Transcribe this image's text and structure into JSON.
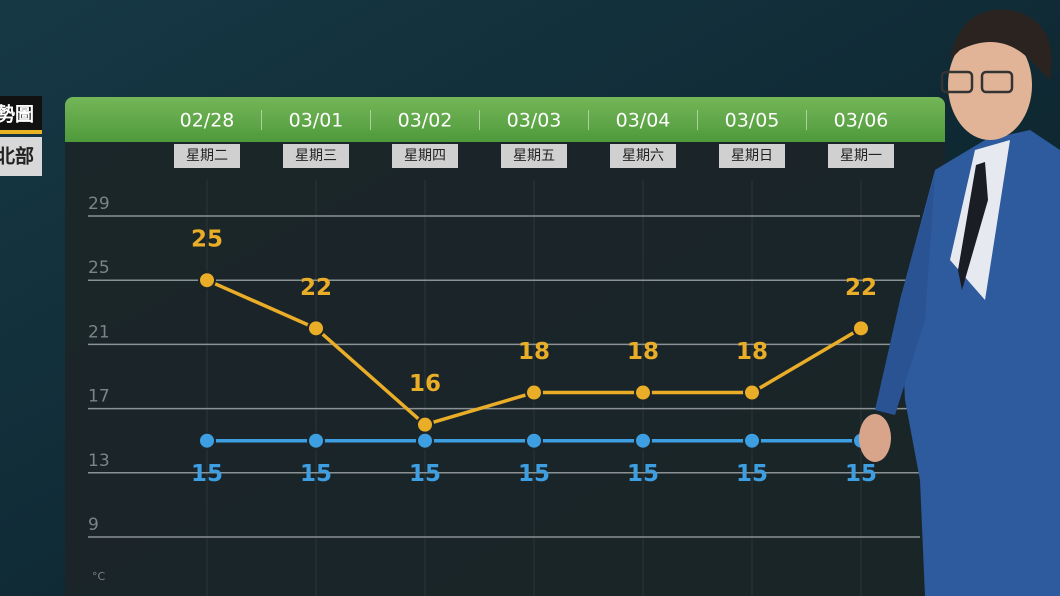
{
  "header": {
    "fragments": [
      "勢圖",
      "北部"
    ]
  },
  "chart_data": {
    "type": "line",
    "categories": [
      "02/28",
      "03/01",
      "03/02",
      "03/03",
      "03/04",
      "03/05",
      "03/06"
    ],
    "weekdays": [
      "星期二",
      "星期三",
      "星期四",
      "星期五",
      "星期六",
      "星期日",
      "星期一"
    ],
    "unit": "°C",
    "series": [
      {
        "color": "#e9ad28",
        "values": [
          25,
          22,
          16,
          18,
          18,
          18,
          22
        ]
      },
      {
        "color": "#3d9fe2",
        "values": [
          15,
          15,
          15,
          15,
          15,
          15,
          15
        ]
      }
    ],
    "ylim": [
      9,
      29
    ],
    "yticks": [
      9,
      13,
      17,
      21,
      25,
      29
    ],
    "grid": true
  }
}
